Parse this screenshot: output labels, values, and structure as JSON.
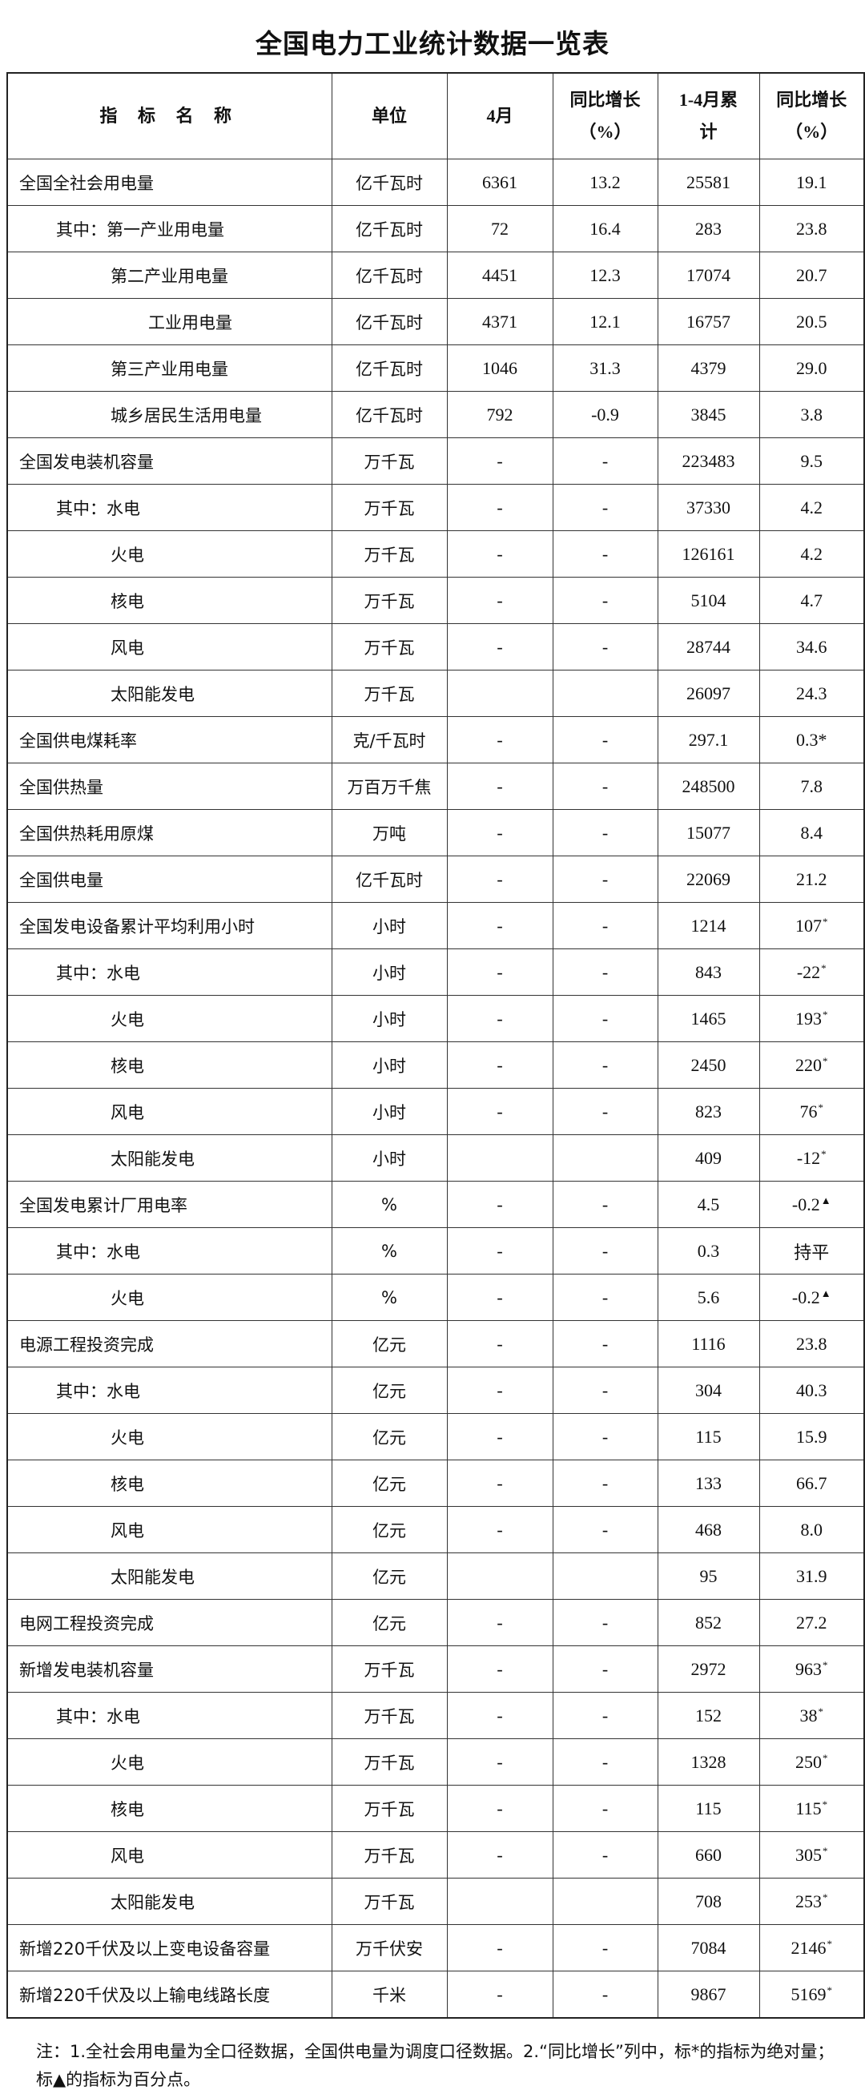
{
  "title": "全国电力工业统计数据一览表",
  "headers": [
    "指 标 名 称",
    "单位",
    "4月",
    "同比增长（%）",
    "1-4月累计",
    "同比增长（%）"
  ],
  "rows": [
    {
      "name": "全国全社会用电量",
      "level": 0,
      "unit": "亿千瓦时",
      "m": "6361",
      "mg": "13.2",
      "c": "25581",
      "cg": "19.1"
    },
    {
      "name": "其中：第一产业用电量",
      "level": 1,
      "unit": "亿千瓦时",
      "m": "72",
      "mg": "16.4",
      "c": "283",
      "cg": "23.8"
    },
    {
      "name": "第二产业用电量",
      "level": 2,
      "unit": "亿千瓦时",
      "m": "4451",
      "mg": "12.3",
      "c": "17074",
      "cg": "20.7"
    },
    {
      "name": "工业用电量",
      "level": 3,
      "unit": "亿千瓦时",
      "m": "4371",
      "mg": "12.1",
      "c": "16757",
      "cg": "20.5"
    },
    {
      "name": "第三产业用电量",
      "level": 2,
      "unit": "亿千瓦时",
      "m": "1046",
      "mg": "31.3",
      "c": "4379",
      "cg": "29.0"
    },
    {
      "name": "城乡居民生活用电量",
      "level": 2,
      "unit": "亿千瓦时",
      "m": "792",
      "mg": "-0.9",
      "c": "3845",
      "cg": "3.8"
    },
    {
      "name": "全国发电装机容量",
      "level": 0,
      "unit": "万千瓦",
      "m": "-",
      "mg": "-",
      "c": "223483",
      "cg": "9.5"
    },
    {
      "name": "其中：水电",
      "level": 1,
      "unit": "万千瓦",
      "m": "-",
      "mg": "-",
      "c": "37330",
      "cg": "4.2"
    },
    {
      "name": "火电",
      "level": 2,
      "unit": "万千瓦",
      "m": "-",
      "mg": "-",
      "c": "126161",
      "cg": "4.2"
    },
    {
      "name": "核电",
      "level": 2,
      "unit": "万千瓦",
      "m": "-",
      "mg": "-",
      "c": "5104",
      "cg": "4.7"
    },
    {
      "name": "风电",
      "level": 2,
      "unit": "万千瓦",
      "m": "-",
      "mg": "-",
      "c": "28744",
      "cg": "34.6"
    },
    {
      "name": "太阳能发电",
      "level": 2,
      "unit": "万千瓦",
      "m": "",
      "mg": "",
      "c": "26097",
      "cg": "24.3"
    },
    {
      "name": "全国供电煤耗率",
      "level": 0,
      "unit": "克/千瓦时",
      "m": "-",
      "mg": "-",
      "c": "297.1",
      "cg": "0.3",
      "mark": "*"
    },
    {
      "name": "全国供热量",
      "level": 0,
      "unit": "万百万千焦",
      "m": "-",
      "mg": "-",
      "c": "248500",
      "cg": "7.8"
    },
    {
      "name": "全国供热耗用原煤",
      "level": 0,
      "unit": "万吨",
      "m": "-",
      "mg": "-",
      "c": "15077",
      "cg": "8.4"
    },
    {
      "name": "全国供电量",
      "level": 0,
      "unit": "亿千瓦时",
      "m": "-",
      "mg": "-",
      "c": "22069",
      "cg": "21.2"
    },
    {
      "name": "全国发电设备累计平均利用小时",
      "level": 0,
      "unit": "小时",
      "m": "-",
      "mg": "-",
      "c": "1214",
      "cg": "107",
      "sup": "*"
    },
    {
      "name": "其中：水电",
      "level": 1,
      "unit": "小时",
      "m": "-",
      "mg": "-",
      "c": "843",
      "cg": "-22",
      "sup": "*"
    },
    {
      "name": "火电",
      "level": 2,
      "unit": "小时",
      "m": "-",
      "mg": "-",
      "c": "1465",
      "cg": "193",
      "sup": "*"
    },
    {
      "name": "核电",
      "level": 2,
      "unit": "小时",
      "m": "-",
      "mg": "-",
      "c": "2450",
      "cg": "220",
      "sup": "*"
    },
    {
      "name": "风电",
      "level": 2,
      "unit": "小时",
      "m": "-",
      "mg": "-",
      "c": "823",
      "cg": "76",
      "sup": "*"
    },
    {
      "name": "太阳能发电",
      "level": 2,
      "unit": "小时",
      "m": "",
      "mg": "",
      "c": "409",
      "cg": "-12",
      "sup": "*"
    },
    {
      "name": "全国发电累计厂用电率",
      "level": 0,
      "unit": "%",
      "m": "-",
      "mg": "-",
      "c": "4.5",
      "cg": "-0.2",
      "sup": "▲"
    },
    {
      "name": "其中：水电",
      "level": 1,
      "unit": "%",
      "m": "-",
      "mg": "-",
      "c": "0.3",
      "cg": "持平"
    },
    {
      "name": "火电",
      "level": 2,
      "unit": "%",
      "m": "-",
      "mg": "-",
      "c": "5.6",
      "cg": "-0.2",
      "sup": "▲"
    },
    {
      "name": "电源工程投资完成",
      "level": 0,
      "unit": "亿元",
      "m": "-",
      "mg": "-",
      "c": "1116",
      "cg": "23.8"
    },
    {
      "name": "其中：水电",
      "level": 1,
      "unit": "亿元",
      "m": "-",
      "mg": "-",
      "c": "304",
      "cg": "40.3"
    },
    {
      "name": "火电",
      "level": 2,
      "unit": "亿元",
      "m": "-",
      "mg": "-",
      "c": "115",
      "cg": "15.9"
    },
    {
      "name": "核电",
      "level": 2,
      "unit": "亿元",
      "m": "-",
      "mg": "-",
      "c": "133",
      "cg": "66.7"
    },
    {
      "name": "风电",
      "level": 2,
      "unit": "亿元",
      "m": "-",
      "mg": "-",
      "c": "468",
      "cg": "8.0"
    },
    {
      "name": "太阳能发电",
      "level": 2,
      "unit": "亿元",
      "m": "",
      "mg": "",
      "c": "95",
      "cg": "31.9"
    },
    {
      "name": "电网工程投资完成",
      "level": 0,
      "unit": "亿元",
      "m": "-",
      "mg": "-",
      "c": "852",
      "cg": "27.2"
    },
    {
      "name": "新增发电装机容量",
      "level": 0,
      "unit": "万千瓦",
      "m": "-",
      "mg": "-",
      "c": "2972",
      "cg": "963",
      "sup": "*"
    },
    {
      "name": "其中：水电",
      "level": 1,
      "unit": "万千瓦",
      "m": "-",
      "mg": "-",
      "c": "152",
      "cg": "38",
      "sup": "*"
    },
    {
      "name": "火电",
      "level": 2,
      "unit": "万千瓦",
      "m": "-",
      "mg": "-",
      "c": "1328",
      "cg": "250",
      "sup": "*"
    },
    {
      "name": "核电",
      "level": 2,
      "unit": "万千瓦",
      "m": "-",
      "mg": "-",
      "c": "115",
      "cg": "115",
      "sup": "*"
    },
    {
      "name": "风电",
      "level": 2,
      "unit": "万千瓦",
      "m": "-",
      "mg": "-",
      "c": "660",
      "cg": "305",
      "sup": "*"
    },
    {
      "name": "太阳能发电",
      "level": 2,
      "unit": "万千瓦",
      "m": "",
      "mg": "",
      "c": "708",
      "cg": "253",
      "sup": "*"
    },
    {
      "name": "新增220千伏及以上变电设备容量",
      "level": 0,
      "unit": "万千伏安",
      "m": "-",
      "mg": "-",
      "c": "7084",
      "cg": "2146",
      "sup": "*"
    },
    {
      "name": "新增220千伏及以上输电线路长度",
      "level": 0,
      "unit": "千米",
      "m": "-",
      "mg": "-",
      "c": "9867",
      "cg": "5169",
      "sup": "*"
    }
  ],
  "note": "注：1.全社会用电量为全口径数据，全国供电量为调度口径数据。2.“同比增长”列中，标*的指标为绝对量；标▲的指标为百分点。"
}
